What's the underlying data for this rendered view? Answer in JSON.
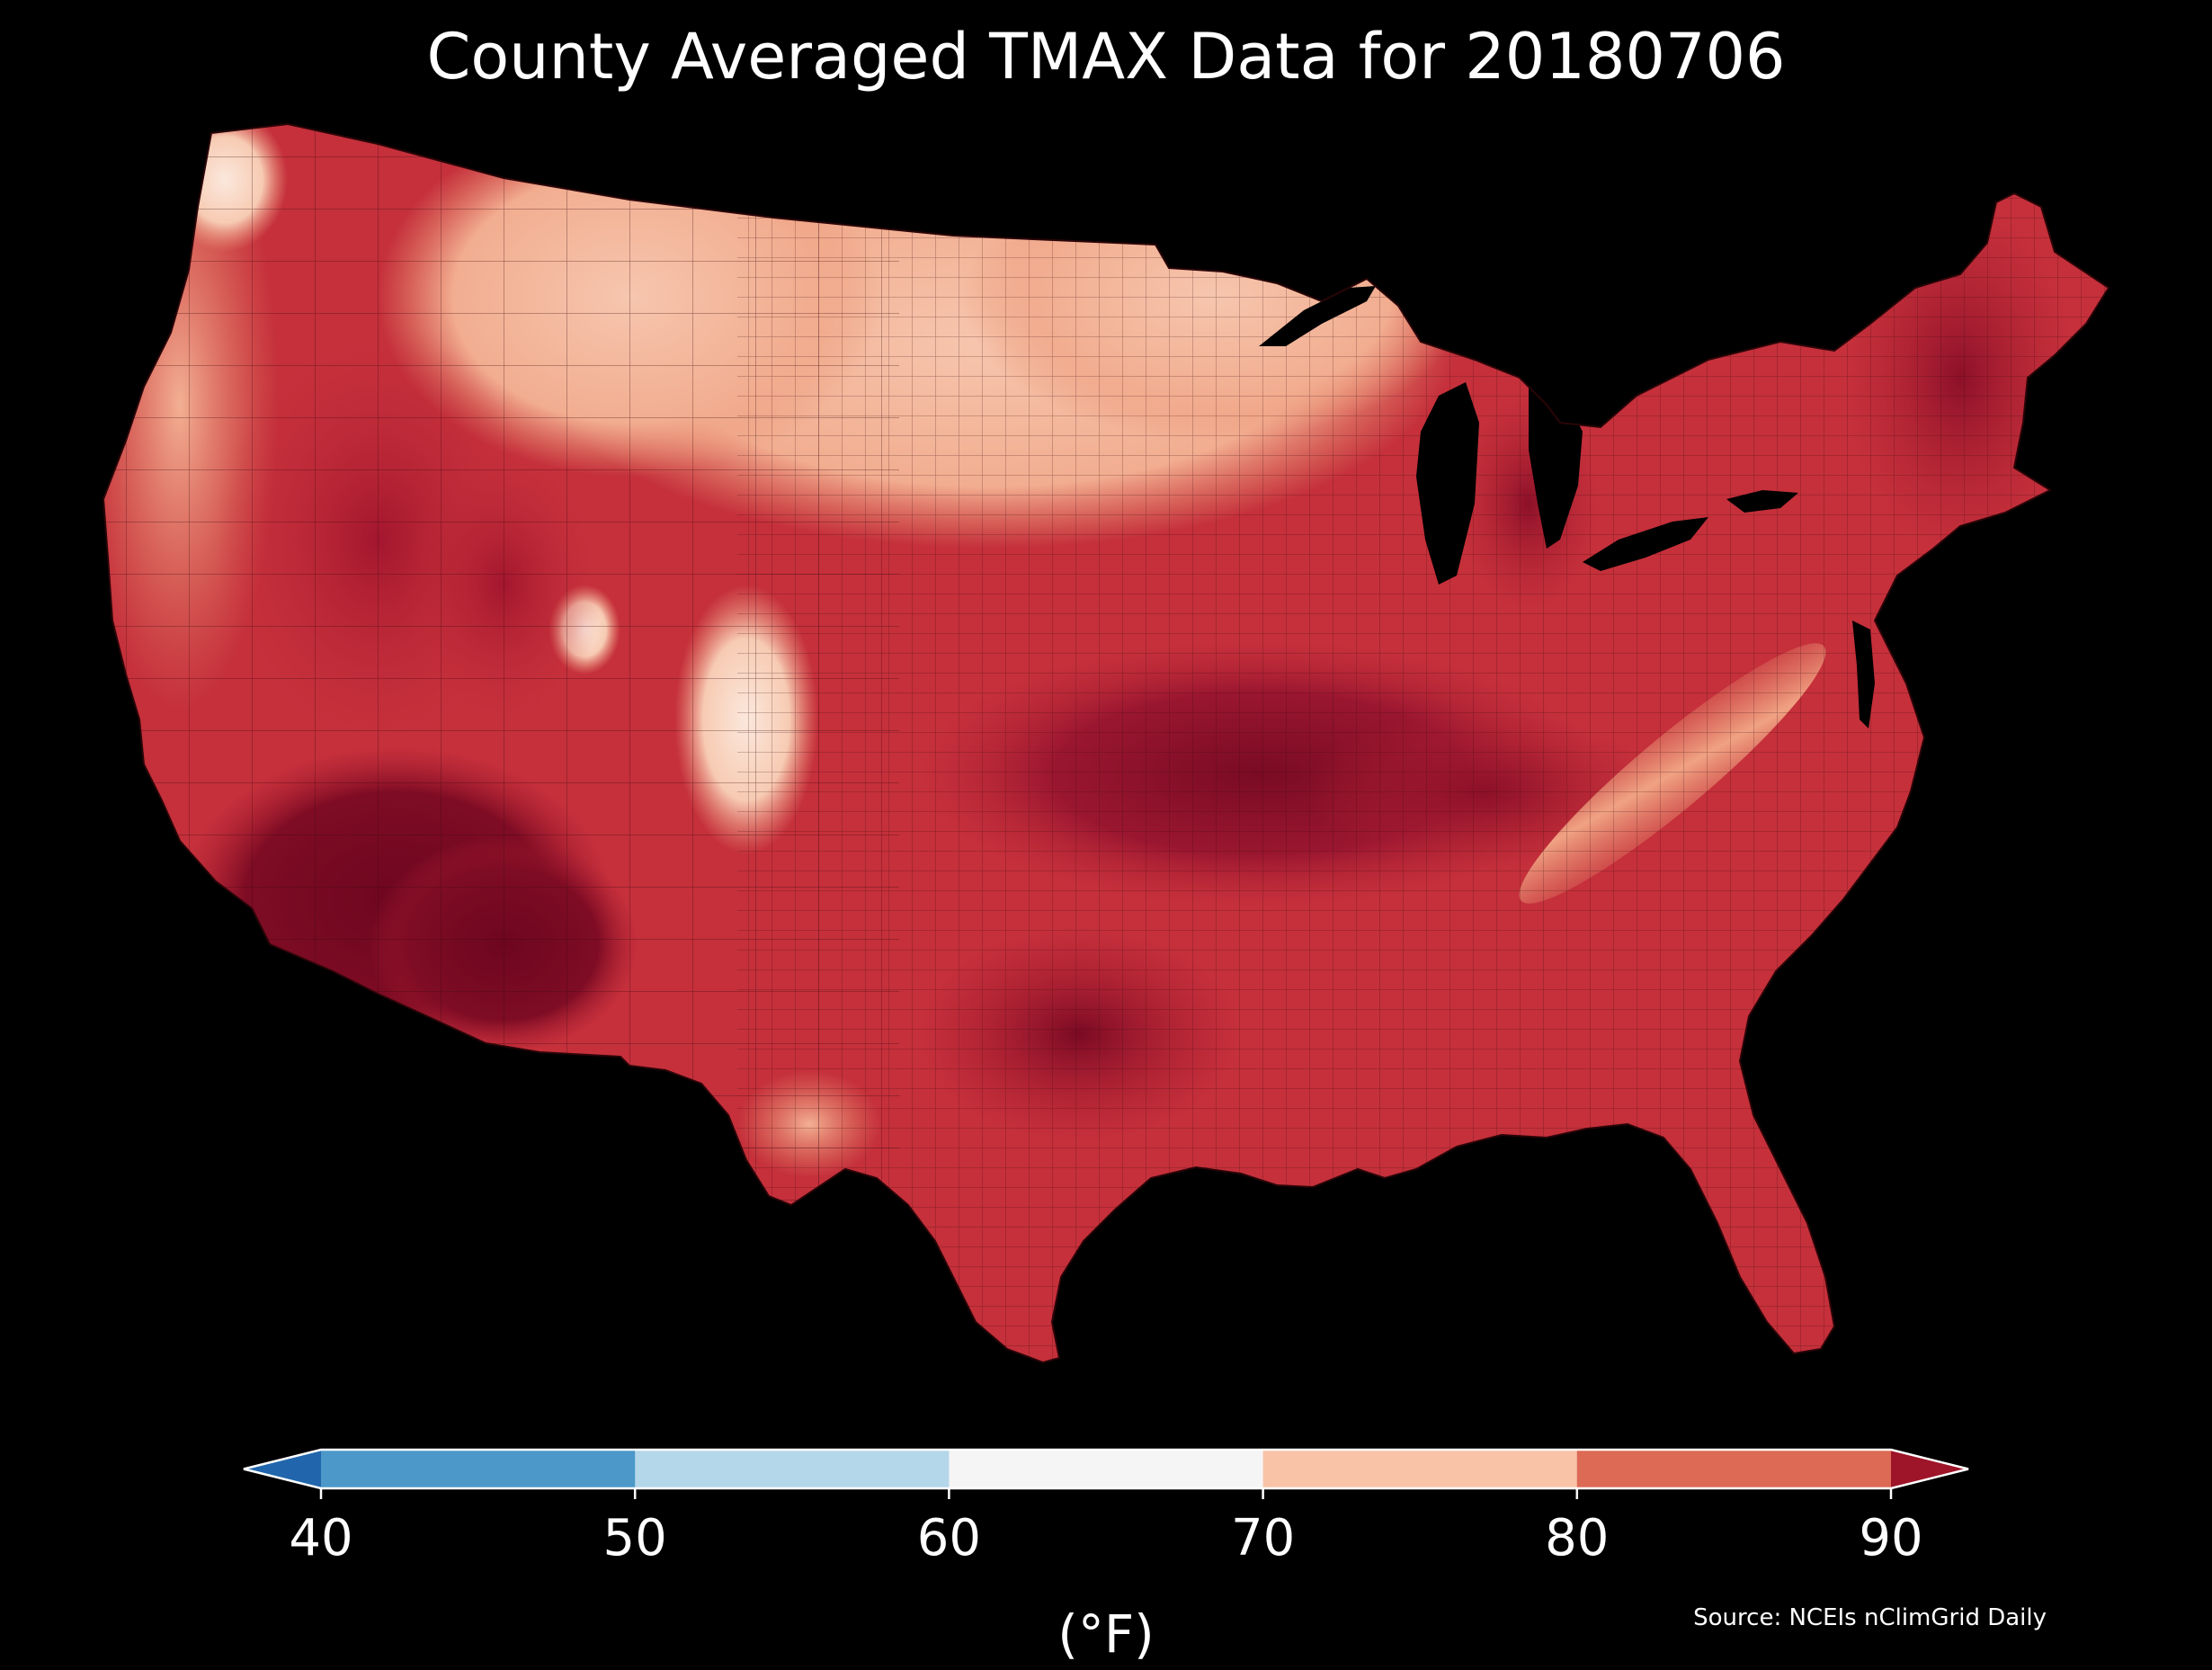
{
  "title": "County Averaged TMAX Data for 20180706",
  "source": "Source: NCEIs nClimGrid Daily",
  "colorbar": {
    "unit": "(°F)",
    "ticks": [
      "40",
      "50",
      "60",
      "70",
      "80",
      "90"
    ],
    "bins": [
      {
        "range": "<40",
        "color": "#2166ac"
      },
      {
        "range": "40-50",
        "color": "#4b98c9"
      },
      {
        "range": "50-60",
        "color": "#b5d7ea"
      },
      {
        "range": "60-70",
        "color": "#f5f5f5"
      },
      {
        "range": "70-80",
        "color": "#f9c3a8"
      },
      {
        "range": "80-90",
        "color": "#dd6a55"
      },
      {
        "range": ">90",
        "color": "#9e1428"
      }
    ]
  },
  "map": {
    "region": "Contiguous United States",
    "level": "county",
    "variable": "TMAX",
    "date": "20180706",
    "palette": {
      "hot_extreme": "#6e0620",
      "very_hot": "#a51a30",
      "hot": "#c8303a",
      "warm": "#dd6a55",
      "mild": "#ef9a7c",
      "cool": "#f9c3a8",
      "coolest": "#fbe3d6"
    }
  }
}
